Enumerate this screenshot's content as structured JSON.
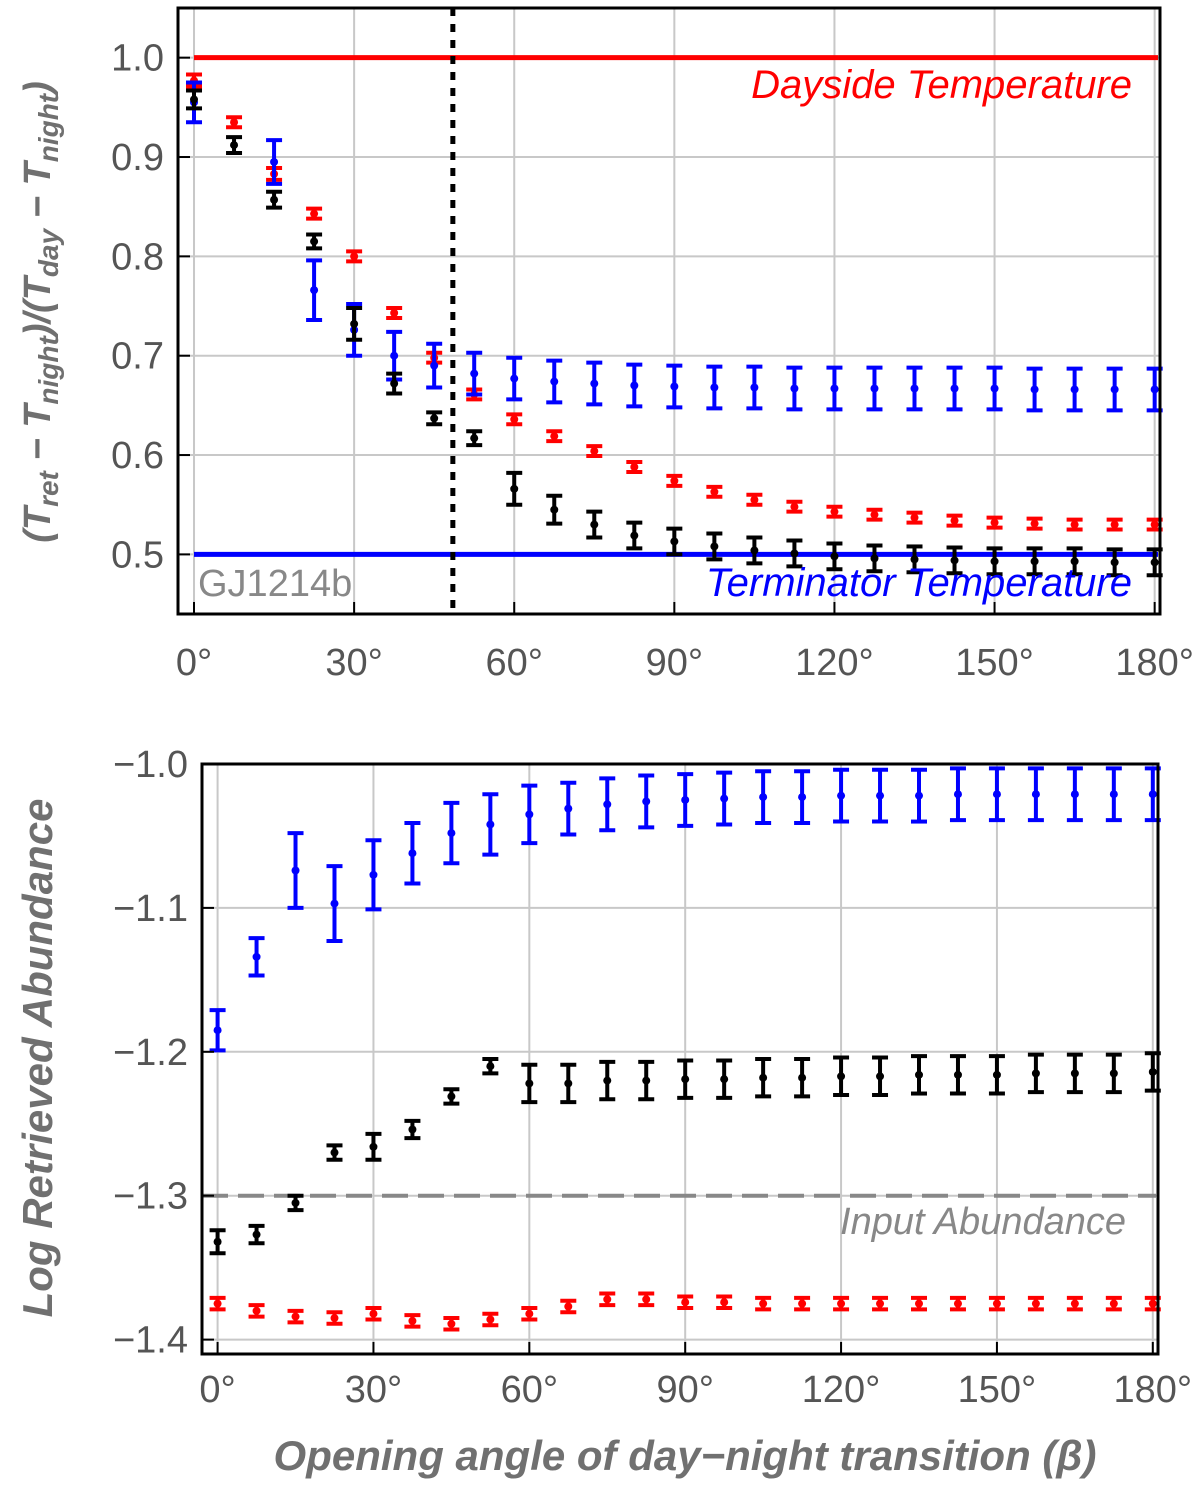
{
  "chart_data": [
    {
      "type": "scatter",
      "ylabel_parts": [
        "(T",
        "ret",
        " − T",
        "night",
        ")/(T",
        "day",
        " − T",
        "night",
        ")"
      ],
      "xticks": [
        "0°",
        "30°",
        "60°",
        "90°",
        "120°",
        "150°",
        "180°"
      ],
      "xtick_values": [
        0,
        30,
        60,
        90,
        120,
        150,
        180
      ],
      "yticks": [
        "0.5",
        "0.6",
        "0.7",
        "0.8",
        "0.9",
        "1.0"
      ],
      "ytick_values": [
        0.5,
        0.6,
        0.7,
        0.8,
        0.9,
        1.0
      ],
      "xlim": [
        -3,
        181
      ],
      "ylim": [
        0.44,
        1.05
      ],
      "grid": true,
      "annotations": {
        "dayside_label": "Dayside Temperature",
        "terminator_label": "Terminator Temperature",
        "planet_label": "GJ1214b"
      },
      "hlines": [
        {
          "y": 1.0,
          "color": "#ff0000"
        },
        {
          "y": 0.5,
          "color": "#0000ff"
        }
      ],
      "vline": {
        "x": 48.5,
        "color": "#000000",
        "style": "dotted"
      },
      "series": [
        {
          "color": "#ff0000",
          "x": [
            0,
            7.5,
            15,
            22.5,
            30,
            37.5,
            45,
            52.5,
            60,
            67.5,
            75,
            82.5,
            90,
            97.5,
            105,
            112.5,
            120,
            127.5,
            135,
            142.5,
            150,
            157.5,
            165,
            172.5,
            180
          ],
          "y": [
            0.977,
            0.935,
            0.883,
            0.843,
            0.8,
            0.743,
            0.698,
            0.661,
            0.636,
            0.619,
            0.604,
            0.588,
            0.574,
            0.563,
            0.555,
            0.548,
            0.543,
            0.54,
            0.537,
            0.534,
            0.532,
            0.531,
            0.53,
            0.53,
            0.53
          ],
          "err": [
            0.006,
            0.005,
            0.006,
            0.005,
            0.005,
            0.005,
            0.005,
            0.005,
            0.005,
            0.005,
            0.005,
            0.005,
            0.005,
            0.005,
            0.005,
            0.005,
            0.005,
            0.005,
            0.005,
            0.005,
            0.005,
            0.005,
            0.005,
            0.005,
            0.005
          ]
        },
        {
          "color": "#0000ff",
          "x": [
            0,
            15,
            22.5,
            30,
            37.5,
            45,
            52.5,
            60,
            67.5,
            75,
            82.5,
            90,
            97.5,
            105,
            112.5,
            120,
            127.5,
            135,
            142.5,
            150,
            157.5,
            165,
            172.5,
            180
          ],
          "y": [
            0.955,
            0.895,
            0.766,
            0.726,
            0.7,
            0.69,
            0.682,
            0.677,
            0.674,
            0.672,
            0.67,
            0.669,
            0.668,
            0.668,
            0.667,
            0.667,
            0.667,
            0.667,
            0.667,
            0.667,
            0.666,
            0.666,
            0.666,
            0.666
          ],
          "err": [
            0.02,
            0.022,
            0.03,
            0.026,
            0.024,
            0.022,
            0.021,
            0.021,
            0.021,
            0.021,
            0.021,
            0.021,
            0.021,
            0.021,
            0.021,
            0.021,
            0.021,
            0.021,
            0.021,
            0.021,
            0.021,
            0.021,
            0.021,
            0.021
          ]
        },
        {
          "color": "#000000",
          "x": [
            0,
            7.5,
            15,
            22.5,
            30,
            37.5,
            45,
            52.5,
            60,
            67.5,
            75,
            82.5,
            90,
            97.5,
            105,
            112.5,
            120,
            127.5,
            135,
            142.5,
            150,
            157.5,
            165,
            172.5,
            180
          ],
          "y": [
            0.958,
            0.912,
            0.857,
            0.815,
            0.732,
            0.672,
            0.637,
            0.617,
            0.566,
            0.545,
            0.53,
            0.519,
            0.513,
            0.508,
            0.504,
            0.501,
            0.498,
            0.496,
            0.495,
            0.494,
            0.493,
            0.493,
            0.493,
            0.492,
            0.492
          ],
          "err": [
            0.009,
            0.008,
            0.008,
            0.007,
            0.016,
            0.01,
            0.006,
            0.007,
            0.016,
            0.014,
            0.013,
            0.013,
            0.013,
            0.013,
            0.013,
            0.013,
            0.013,
            0.013,
            0.013,
            0.013,
            0.013,
            0.013,
            0.013,
            0.013,
            0.013
          ]
        }
      ]
    },
    {
      "type": "scatter",
      "xlabel": "Opening angle of day−night transition (β)",
      "ylabel": "Log Retrieved Abundance",
      "xticks": [
        "0°",
        "30°",
        "60°",
        "90°",
        "120°",
        "150°",
        "180°"
      ],
      "xtick_values": [
        0,
        30,
        60,
        90,
        120,
        150,
        180
      ],
      "yticks": [
        "−1.4",
        "−1.3",
        "−1.2",
        "−1.1",
        "−1.0"
      ],
      "ytick_values": [
        -1.4,
        -1.3,
        -1.2,
        -1.1,
        -1.0
      ],
      "xlim": [
        -3,
        181
      ],
      "ylim": [
        -1.41,
        -1.0
      ],
      "grid": true,
      "annotations": {
        "input_label": "Input Abundance"
      },
      "hlines": [
        {
          "y": -1.3,
          "color": "#888888",
          "style": "dashed"
        }
      ],
      "series": [
        {
          "color": "#0000ff",
          "x": [
            0,
            7.5,
            15,
            22.5,
            30,
            37.5,
            45,
            52.5,
            60,
            67.5,
            75,
            82.5,
            90,
            97.5,
            105,
            112.5,
            120,
            127.5,
            135,
            142.5,
            150,
            157.5,
            165,
            172.5,
            180
          ],
          "y": [
            -1.185,
            -1.134,
            -1.074,
            -1.097,
            -1.077,
            -1.062,
            -1.048,
            -1.042,
            -1.035,
            -1.031,
            -1.028,
            -1.026,
            -1.025,
            -1.024,
            -1.023,
            -1.023,
            -1.022,
            -1.022,
            -1.022,
            -1.021,
            -1.021,
            -1.021,
            -1.021,
            -1.021,
            -1.021
          ],
          "err": [
            0.014,
            0.013,
            0.026,
            0.026,
            0.024,
            0.021,
            0.021,
            0.021,
            0.02,
            0.018,
            0.018,
            0.018,
            0.018,
            0.018,
            0.018,
            0.018,
            0.018,
            0.018,
            0.018,
            0.018,
            0.018,
            0.018,
            0.018,
            0.018,
            0.018
          ]
        },
        {
          "color": "#000000",
          "x": [
            0,
            7.5,
            15,
            22.5,
            30,
            37.5,
            45,
            52.5,
            60,
            67.5,
            75,
            82.5,
            90,
            97.5,
            105,
            112.5,
            120,
            127.5,
            135,
            142.5,
            150,
            157.5,
            165,
            172.5,
            180
          ],
          "y": [
            -1.332,
            -1.327,
            -1.305,
            -1.27,
            -1.266,
            -1.254,
            -1.231,
            -1.21,
            -1.222,
            -1.222,
            -1.22,
            -1.22,
            -1.219,
            -1.219,
            -1.218,
            -1.218,
            -1.217,
            -1.217,
            -1.216,
            -1.216,
            -1.216,
            -1.215,
            -1.215,
            -1.215,
            -1.214
          ],
          "err": [
            0.008,
            0.006,
            0.005,
            0.005,
            0.009,
            0.006,
            0.005,
            0.005,
            0.013,
            0.013,
            0.013,
            0.013,
            0.013,
            0.013,
            0.013,
            0.013,
            0.013,
            0.013,
            0.013,
            0.013,
            0.013,
            0.013,
            0.013,
            0.013,
            0.013
          ]
        },
        {
          "color": "#ff0000",
          "x": [
            0,
            7.5,
            15,
            22.5,
            30,
            37.5,
            45,
            52.5,
            60,
            67.5,
            75,
            82.5,
            90,
            97.5,
            105,
            112.5,
            120,
            127.5,
            135,
            142.5,
            150,
            157.5,
            165,
            172.5,
            180
          ],
          "y": [
            -1.375,
            -1.38,
            -1.384,
            -1.385,
            -1.382,
            -1.387,
            -1.389,
            -1.386,
            -1.382,
            -1.377,
            -1.372,
            -1.372,
            -1.374,
            -1.374,
            -1.375,
            -1.375,
            -1.375,
            -1.375,
            -1.375,
            -1.375,
            -1.375,
            -1.375,
            -1.375,
            -1.375,
            -1.375
          ],
          "err": [
            0.004,
            0.004,
            0.004,
            0.004,
            0.004,
            0.004,
            0.004,
            0.004,
            0.004,
            0.004,
            0.004,
            0.004,
            0.004,
            0.004,
            0.004,
            0.004,
            0.004,
            0.004,
            0.004,
            0.004,
            0.004,
            0.004,
            0.004,
            0.004,
            0.004
          ]
        }
      ]
    }
  ]
}
